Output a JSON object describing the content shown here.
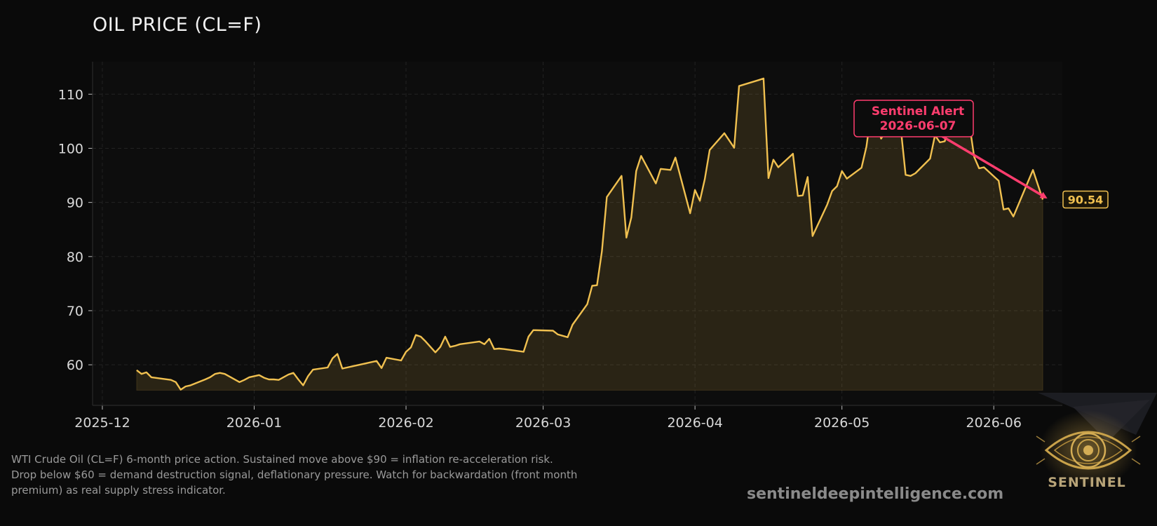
{
  "chart_data": {
    "type": "area",
    "title": "OIL PRICE (CL=F)",
    "xlabel": "",
    "ylabel": "",
    "x_ticks": [
      "2025-12",
      "2026-01",
      "2026-02",
      "2026-03",
      "2026-04",
      "2026-05",
      "2026-06"
    ],
    "y_ticks": [
      60,
      70,
      80,
      90,
      100,
      110
    ],
    "xlim": [
      "2025-11-29",
      "2026-06-15"
    ],
    "ylim": [
      52.5,
      116
    ],
    "grid": true,
    "baseline": 55.3,
    "series": [
      {
        "color": "#f0c050",
        "points": [
          [
            "2025-12-08",
            59.0
          ],
          [
            "2025-12-09",
            58.3
          ],
          [
            "2025-12-10",
            58.6
          ],
          [
            "2025-12-11",
            57.7
          ],
          [
            "2025-12-15",
            57.2
          ],
          [
            "2025-12-16",
            56.8
          ],
          [
            "2025-12-17",
            55.4
          ],
          [
            "2025-12-18",
            56.0
          ],
          [
            "2025-12-19",
            56.2
          ],
          [
            "2025-12-22",
            57.3
          ],
          [
            "2025-12-23",
            57.7
          ],
          [
            "2025-12-24",
            58.3
          ],
          [
            "2025-12-25",
            58.5
          ],
          [
            "2025-12-26",
            58.3
          ],
          [
            "2025-12-29",
            56.8
          ],
          [
            "2025-12-30",
            57.2
          ],
          [
            "2025-12-31",
            57.7
          ],
          [
            "2026-01-02",
            58.1
          ],
          [
            "2026-01-03",
            57.6
          ],
          [
            "2026-01-04",
            57.3
          ],
          [
            "2026-01-05",
            57.3
          ],
          [
            "2026-01-06",
            57.2
          ],
          [
            "2026-01-08",
            58.2
          ],
          [
            "2026-01-09",
            58.5
          ],
          [
            "2026-01-10",
            57.3
          ],
          [
            "2026-01-11",
            56.2
          ],
          [
            "2026-01-12",
            57.9
          ],
          [
            "2026-01-13",
            59.1
          ],
          [
            "2026-01-16",
            59.5
          ],
          [
            "2026-01-17",
            61.2
          ],
          [
            "2026-01-18",
            62.0
          ],
          [
            "2026-01-19",
            59.3
          ],
          [
            "2026-01-26",
            60.7
          ],
          [
            "2026-01-27",
            59.4
          ],
          [
            "2026-01-28",
            61.3
          ],
          [
            "2026-01-31",
            60.8
          ],
          [
            "2026-02-01",
            62.4
          ],
          [
            "2026-02-02",
            63.2
          ],
          [
            "2026-02-03",
            65.5
          ],
          [
            "2026-02-04",
            65.2
          ],
          [
            "2026-02-05",
            64.3
          ],
          [
            "2026-02-07",
            62.3
          ],
          [
            "2026-02-08",
            63.3
          ],
          [
            "2026-02-09",
            65.2
          ],
          [
            "2026-02-10",
            63.3
          ],
          [
            "2026-02-11",
            63.5
          ],
          [
            "2026-02-12",
            63.8
          ],
          [
            "2026-02-16",
            64.3
          ],
          [
            "2026-02-17",
            63.8
          ],
          [
            "2026-02-18",
            64.8
          ],
          [
            "2026-02-19",
            62.9
          ],
          [
            "2026-02-20",
            63.0
          ],
          [
            "2026-02-21",
            62.9
          ],
          [
            "2026-02-25",
            62.4
          ],
          [
            "2026-02-26",
            65.2
          ],
          [
            "2026-02-27",
            66.4
          ],
          [
            "2026-03-03",
            66.3
          ],
          [
            "2026-03-04",
            65.6
          ],
          [
            "2026-03-06",
            65.1
          ],
          [
            "2026-03-07",
            67.4
          ],
          [
            "2026-03-10",
            71.2
          ],
          [
            "2026-03-11",
            74.6
          ],
          [
            "2026-03-12",
            74.7
          ],
          [
            "2026-03-13",
            81.0
          ],
          [
            "2026-03-14",
            91.0
          ],
          [
            "2026-03-17",
            94.9
          ],
          [
            "2026-03-18",
            83.5
          ],
          [
            "2026-03-19",
            87.2
          ],
          [
            "2026-03-20",
            95.8
          ],
          [
            "2026-03-21",
            98.6
          ],
          [
            "2026-03-24",
            93.5
          ],
          [
            "2026-03-25",
            96.2
          ],
          [
            "2026-03-27",
            96.0
          ],
          [
            "2026-03-28",
            98.3
          ],
          [
            "2026-03-31",
            88.0
          ],
          [
            "2026-04-01",
            92.3
          ],
          [
            "2026-04-02",
            90.3
          ],
          [
            "2026-04-03",
            94.3
          ],
          [
            "2026-04-04",
            99.7
          ],
          [
            "2026-04-07",
            102.8
          ],
          [
            "2026-04-09",
            100.1
          ],
          [
            "2026-04-10",
            111.5
          ],
          [
            "2026-04-14",
            112.6
          ],
          [
            "2026-04-15",
            112.9
          ],
          [
            "2026-04-16",
            94.5
          ],
          [
            "2026-04-17",
            97.9
          ],
          [
            "2026-04-18",
            96.5
          ],
          [
            "2026-04-21",
            99.0
          ],
          [
            "2026-04-22",
            91.2
          ],
          [
            "2026-04-23",
            91.3
          ],
          [
            "2026-04-24",
            94.7
          ],
          [
            "2026-04-25",
            83.8
          ],
          [
            "2026-04-28",
            89.6
          ],
          [
            "2026-04-29",
            92.1
          ],
          [
            "2026-04-30",
            93.0
          ],
          [
            "2026-05-01",
            95.8
          ],
          [
            "2026-05-02",
            94.4
          ],
          [
            "2026-05-05",
            96.4
          ],
          [
            "2026-05-06",
            100.3
          ],
          [
            "2026-05-07",
            106.8
          ],
          [
            "2026-05-08",
            104.8
          ],
          [
            "2026-05-09",
            101.8
          ],
          [
            "2026-05-12",
            106.4
          ],
          [
            "2026-05-13",
            103.8
          ],
          [
            "2026-05-14",
            95.1
          ],
          [
            "2026-05-15",
            94.9
          ],
          [
            "2026-05-16",
            95.4
          ],
          [
            "2026-05-19",
            98.1
          ],
          [
            "2026-05-20",
            102.4
          ],
          [
            "2026-05-21",
            101.1
          ],
          [
            "2026-05-22",
            101.3
          ],
          [
            "2026-05-23",
            105.6
          ],
          [
            "2026-05-26",
            103.4
          ],
          [
            "2026-05-27",
            104.6
          ],
          [
            "2026-05-28",
            98.4
          ],
          [
            "2026-05-29",
            96.3
          ],
          [
            "2026-05-30",
            96.5
          ],
          [
            "2026-06-02",
            94.0
          ],
          [
            "2026-06-03",
            88.7
          ],
          [
            "2026-06-04",
            88.9
          ],
          [
            "2026-06-05",
            87.4
          ],
          [
            "2026-06-09",
            96.0
          ],
          [
            "2026-06-11",
            90.54
          ]
        ]
      }
    ],
    "last_value_label": "90.54",
    "annotation": {
      "lines": [
        "Sentinel Alert",
        "2026-06-07"
      ],
      "arrow_target": [
        "2026-06-11",
        90.54
      ],
      "color": "#ff3d6e"
    }
  },
  "caption": {
    "lines": [
      "WTI Crude Oil (CL=F) 6-month price action. Sustained move above $90 = inflation re-acceleration risk.",
      "Drop below $60 = demand destruction signal, deflationary pressure. Watch for backwardation (front month",
      "premium) as real supply stress indicator."
    ]
  },
  "website": "sentineldeepintelligence.com",
  "logo": {
    "text": "SENTINEL",
    "icon": "eye-icon"
  },
  "colors": {
    "background": "#0a0a0a",
    "line": "#f0c050",
    "alert": "#ff3d6e",
    "text": "#d8d8d8"
  }
}
